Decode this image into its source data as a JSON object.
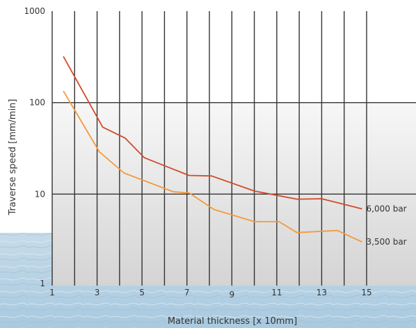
{
  "chart_data": {
    "type": "line",
    "xlabel": "Material thickness [x 10mm]",
    "ylabel": "Traverse speed [mm/min]",
    "y_scale": "log",
    "xlim": [
      1,
      16
    ],
    "ylim": [
      1,
      1000
    ],
    "x_ticks": [
      1,
      3,
      5,
      7,
      9,
      11,
      13,
      15
    ],
    "x_tick_labels": [
      "1",
      "3",
      "5",
      "7",
      "9",
      "11",
      "13",
      "15"
    ],
    "y_ticks": [
      1,
      10,
      100,
      1000
    ],
    "y_tick_labels": [
      "1",
      "10",
      "100",
      "1000"
    ],
    "grid": true,
    "series": [
      {
        "name": "6,000 bar",
        "color": "#d24a2a",
        "points": [
          {
            "x": 1.5,
            "y": 320
          },
          {
            "x": 3.25,
            "y": 54
          },
          {
            "x": 4.25,
            "y": 41
          },
          {
            "x": 5.1,
            "y": 25
          },
          {
            "x": 7.1,
            "y": 16
          },
          {
            "x": 8.1,
            "y": 15.8
          },
          {
            "x": 10,
            "y": 10.8
          },
          {
            "x": 11.9,
            "y": 8.8
          },
          {
            "x": 13,
            "y": 8.9
          },
          {
            "x": 14.8,
            "y": 6.9
          }
        ]
      },
      {
        "name": "3,500 bar",
        "color": "#f39a3c",
        "points": [
          {
            "x": 1.5,
            "y": 134
          },
          {
            "x": 3.1,
            "y": 29
          },
          {
            "x": 4.2,
            "y": 17
          },
          {
            "x": 6.4,
            "y": 10.6
          },
          {
            "x": 7.1,
            "y": 10.3
          },
          {
            "x": 8.2,
            "y": 6.8
          },
          {
            "x": 10,
            "y": 5
          },
          {
            "x": 11.1,
            "y": 5
          },
          {
            "x": 11.9,
            "y": 3.8
          },
          {
            "x": 13.7,
            "y": 4
          },
          {
            "x": 14.8,
            "y": 3
          }
        ]
      }
    ]
  }
}
